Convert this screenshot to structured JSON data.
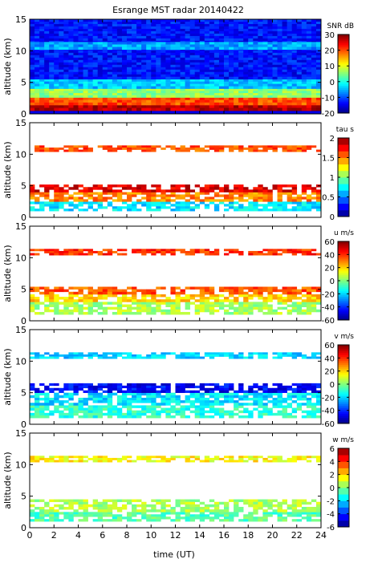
{
  "figure": {
    "title": "Esrange MST radar 20140422",
    "xlabel": "time (UT)",
    "xticks": [
      0,
      2,
      4,
      6,
      8,
      10,
      12,
      14,
      16,
      18,
      20,
      22,
      24
    ],
    "xlim": [
      0,
      24
    ]
  },
  "chart_data": [
    {
      "type": "heatmap",
      "panel": "snr",
      "ylabel": "altitude (km)",
      "ylim": [
        0,
        15
      ],
      "yticks": [
        0,
        5,
        10,
        15
      ],
      "colorbar_label": "SNR dB",
      "clim": [
        -20,
        30
      ],
      "cticks": [
        30,
        20,
        10,
        0,
        -10,
        -20
      ],
      "colormap": "jet",
      "layers": [
        {
          "altitude_km": [
            0.5,
            1.4
          ],
          "value": 27
        },
        {
          "altitude_km": [
            1.4,
            2.6
          ],
          "value": 20
        },
        {
          "altitude_km": [
            2.6,
            4.0
          ],
          "value": 6
        },
        {
          "altitude_km": [
            4.0,
            5.5
          ],
          "value": -4
        },
        {
          "altitude_km": [
            5.5,
            15
          ],
          "value": -13
        },
        {
          "altitude_km": [
            10.2,
            11.4
          ],
          "value": -6
        }
      ]
    },
    {
      "type": "heatmap",
      "panel": "tau",
      "ylabel": "altitude (km)",
      "ylim": [
        0,
        15
      ],
      "yticks": [
        0,
        5,
        10,
        15
      ],
      "colorbar_label": "tau s",
      "clim": [
        0,
        2
      ],
      "cticks": [
        2,
        1.5,
        1,
        0.5,
        0
      ],
      "colormap": "jet_discrete",
      "layers": [
        {
          "altitude_km": [
            1.0,
            2.5
          ],
          "value": 0.7
        },
        {
          "altitude_km": [
            2.5,
            4.0
          ],
          "value": 1.5
        },
        {
          "altitude_km": [
            4.0,
            5.2
          ],
          "value": 1.8
        },
        {
          "altitude_km": [
            10.4,
            11.4
          ],
          "value": 1.6
        }
      ]
    },
    {
      "type": "heatmap",
      "panel": "u",
      "ylabel": "altitude (km)",
      "ylim": [
        0,
        15
      ],
      "yticks": [
        0,
        5,
        10,
        15
      ],
      "colorbar_label": "u m/s",
      "clim": [
        -60,
        60
      ],
      "cticks": [
        60,
        40,
        20,
        0,
        -20,
        -40,
        -60
      ],
      "colormap": "jet",
      "layers": [
        {
          "altitude_km": [
            1.0,
            3.0
          ],
          "value": 5
        },
        {
          "altitude_km": [
            3.0,
            4.2
          ],
          "value": 20
        },
        {
          "altitude_km": [
            4.2,
            5.4
          ],
          "value": 35
        },
        {
          "altitude_km": [
            10.4,
            11.4
          ],
          "value": 40
        }
      ]
    },
    {
      "type": "heatmap",
      "panel": "v",
      "ylabel": "altitude (km)",
      "ylim": [
        0,
        15
      ],
      "yticks": [
        0,
        5,
        10,
        15
      ],
      "colorbar_label": "v m/s",
      "clim": [
        -60,
        60
      ],
      "cticks": [
        60,
        40,
        20,
        0,
        -20,
        -40,
        -60
      ],
      "colormap": "jet",
      "layers": [
        {
          "altitude_km": [
            1.0,
            3.0
          ],
          "value": -10
        },
        {
          "altitude_km": [
            3.0,
            5.0
          ],
          "value": -18
        },
        {
          "altitude_km": [
            5.0,
            6.5
          ],
          "value": -45
        },
        {
          "altitude_km": [
            10.4,
            11.4
          ],
          "value": -20
        }
      ]
    },
    {
      "type": "heatmap",
      "panel": "w",
      "ylabel": "altitude (km)",
      "ylim": [
        0,
        15
      ],
      "yticks": [
        0,
        5,
        10,
        15
      ],
      "colorbar_label": "w m/s",
      "clim": [
        -6,
        6
      ],
      "cticks": [
        6,
        4,
        2,
        0,
        -2,
        -4,
        -6
      ],
      "colormap": "jet_discrete",
      "layers": [
        {
          "altitude_km": [
            1.0,
            2.5
          ],
          "value": -0.5
        },
        {
          "altitude_km": [
            2.5,
            4.5
          ],
          "value": 0.5
        },
        {
          "altitude_km": [
            10.4,
            11.4
          ],
          "value": 1.5
        }
      ]
    }
  ]
}
